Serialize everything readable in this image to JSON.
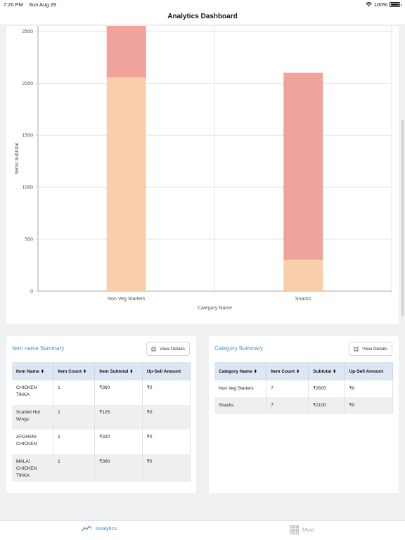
{
  "status_bar": {
    "time": "7:20 PM",
    "date": "Sun Aug 29",
    "battery": "100%"
  },
  "header": {
    "title": "Analytics Dashboard"
  },
  "chart_data": {
    "type": "bar",
    "stacked": true,
    "categories": [
      "Non Veg Starters",
      "Snacks"
    ],
    "series": [
      {
        "values": [
          2055,
          300
        ],
        "color": "#f9cfab"
      },
      {
        "values": [
          550,
          1800
        ],
        "color": "#f0a39c"
      }
    ],
    "xlabel": "Category Name",
    "ylabel": "Items Subtotal",
    "yticks": [
      0,
      500,
      1000,
      1500,
      2000,
      2500
    ],
    "ylim": [
      0,
      2550
    ]
  },
  "item_summary": {
    "title": "Item name Summary",
    "view_label": "View Details",
    "columns": [
      "Item Name",
      "Item Count",
      "Item Subtotal",
      "Up-Sell Amount"
    ],
    "rows": [
      [
        "CHICKEN TIKKA",
        "1",
        "₹360",
        "₹0"
      ],
      [
        "Scarlett Hot Wings",
        "1",
        "₹125",
        "₹0"
      ],
      [
        "AFGHANI CHICKEN",
        "1",
        "₹320",
        "₹0"
      ],
      [
        "MALAI CHICKEN TIKKA",
        "1",
        "₹360",
        "₹0"
      ]
    ]
  },
  "category_summary": {
    "title": "Category Summary",
    "view_label": "View Details",
    "columns": [
      "Category Name",
      "Item Count",
      "Subtotal",
      "Up-Sell Amount"
    ],
    "rows": [
      [
        "Non Veg Starters",
        "7",
        "₹2605",
        "₹0"
      ],
      [
        "Snacks",
        "7",
        "₹2100",
        "₹0"
      ]
    ]
  },
  "tabs": {
    "analytics": "Analytics",
    "more": "More"
  }
}
